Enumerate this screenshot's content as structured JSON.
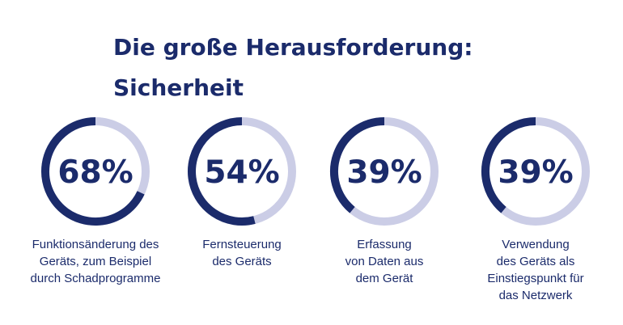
{
  "title": "Die große Herausforderung:\nSicherheit",
  "colors": {
    "primary": "#1b2b6b",
    "track": "#cbcde6"
  },
  "chart_data": [
    {
      "type": "pie",
      "values": [
        68
      ],
      "label": "68%",
      "caption": "Funktionsänderung des\nGeräts, zum Beispiel\ndurch Schadprogramme"
    },
    {
      "type": "pie",
      "values": [
        54
      ],
      "label": "54%",
      "caption": "Fernsteuerung\ndes Geräts"
    },
    {
      "type": "pie",
      "values": [
        39
      ],
      "label": "39%",
      "caption": "Erfassung\nvon Daten aus\ndem Gerät"
    },
    {
      "type": "pie",
      "values": [
        39
      ],
      "label": "39%",
      "caption": "Verwendung\ndes Geräts als\nEinstiegspunkt für\ndas Netzwerk"
    }
  ]
}
